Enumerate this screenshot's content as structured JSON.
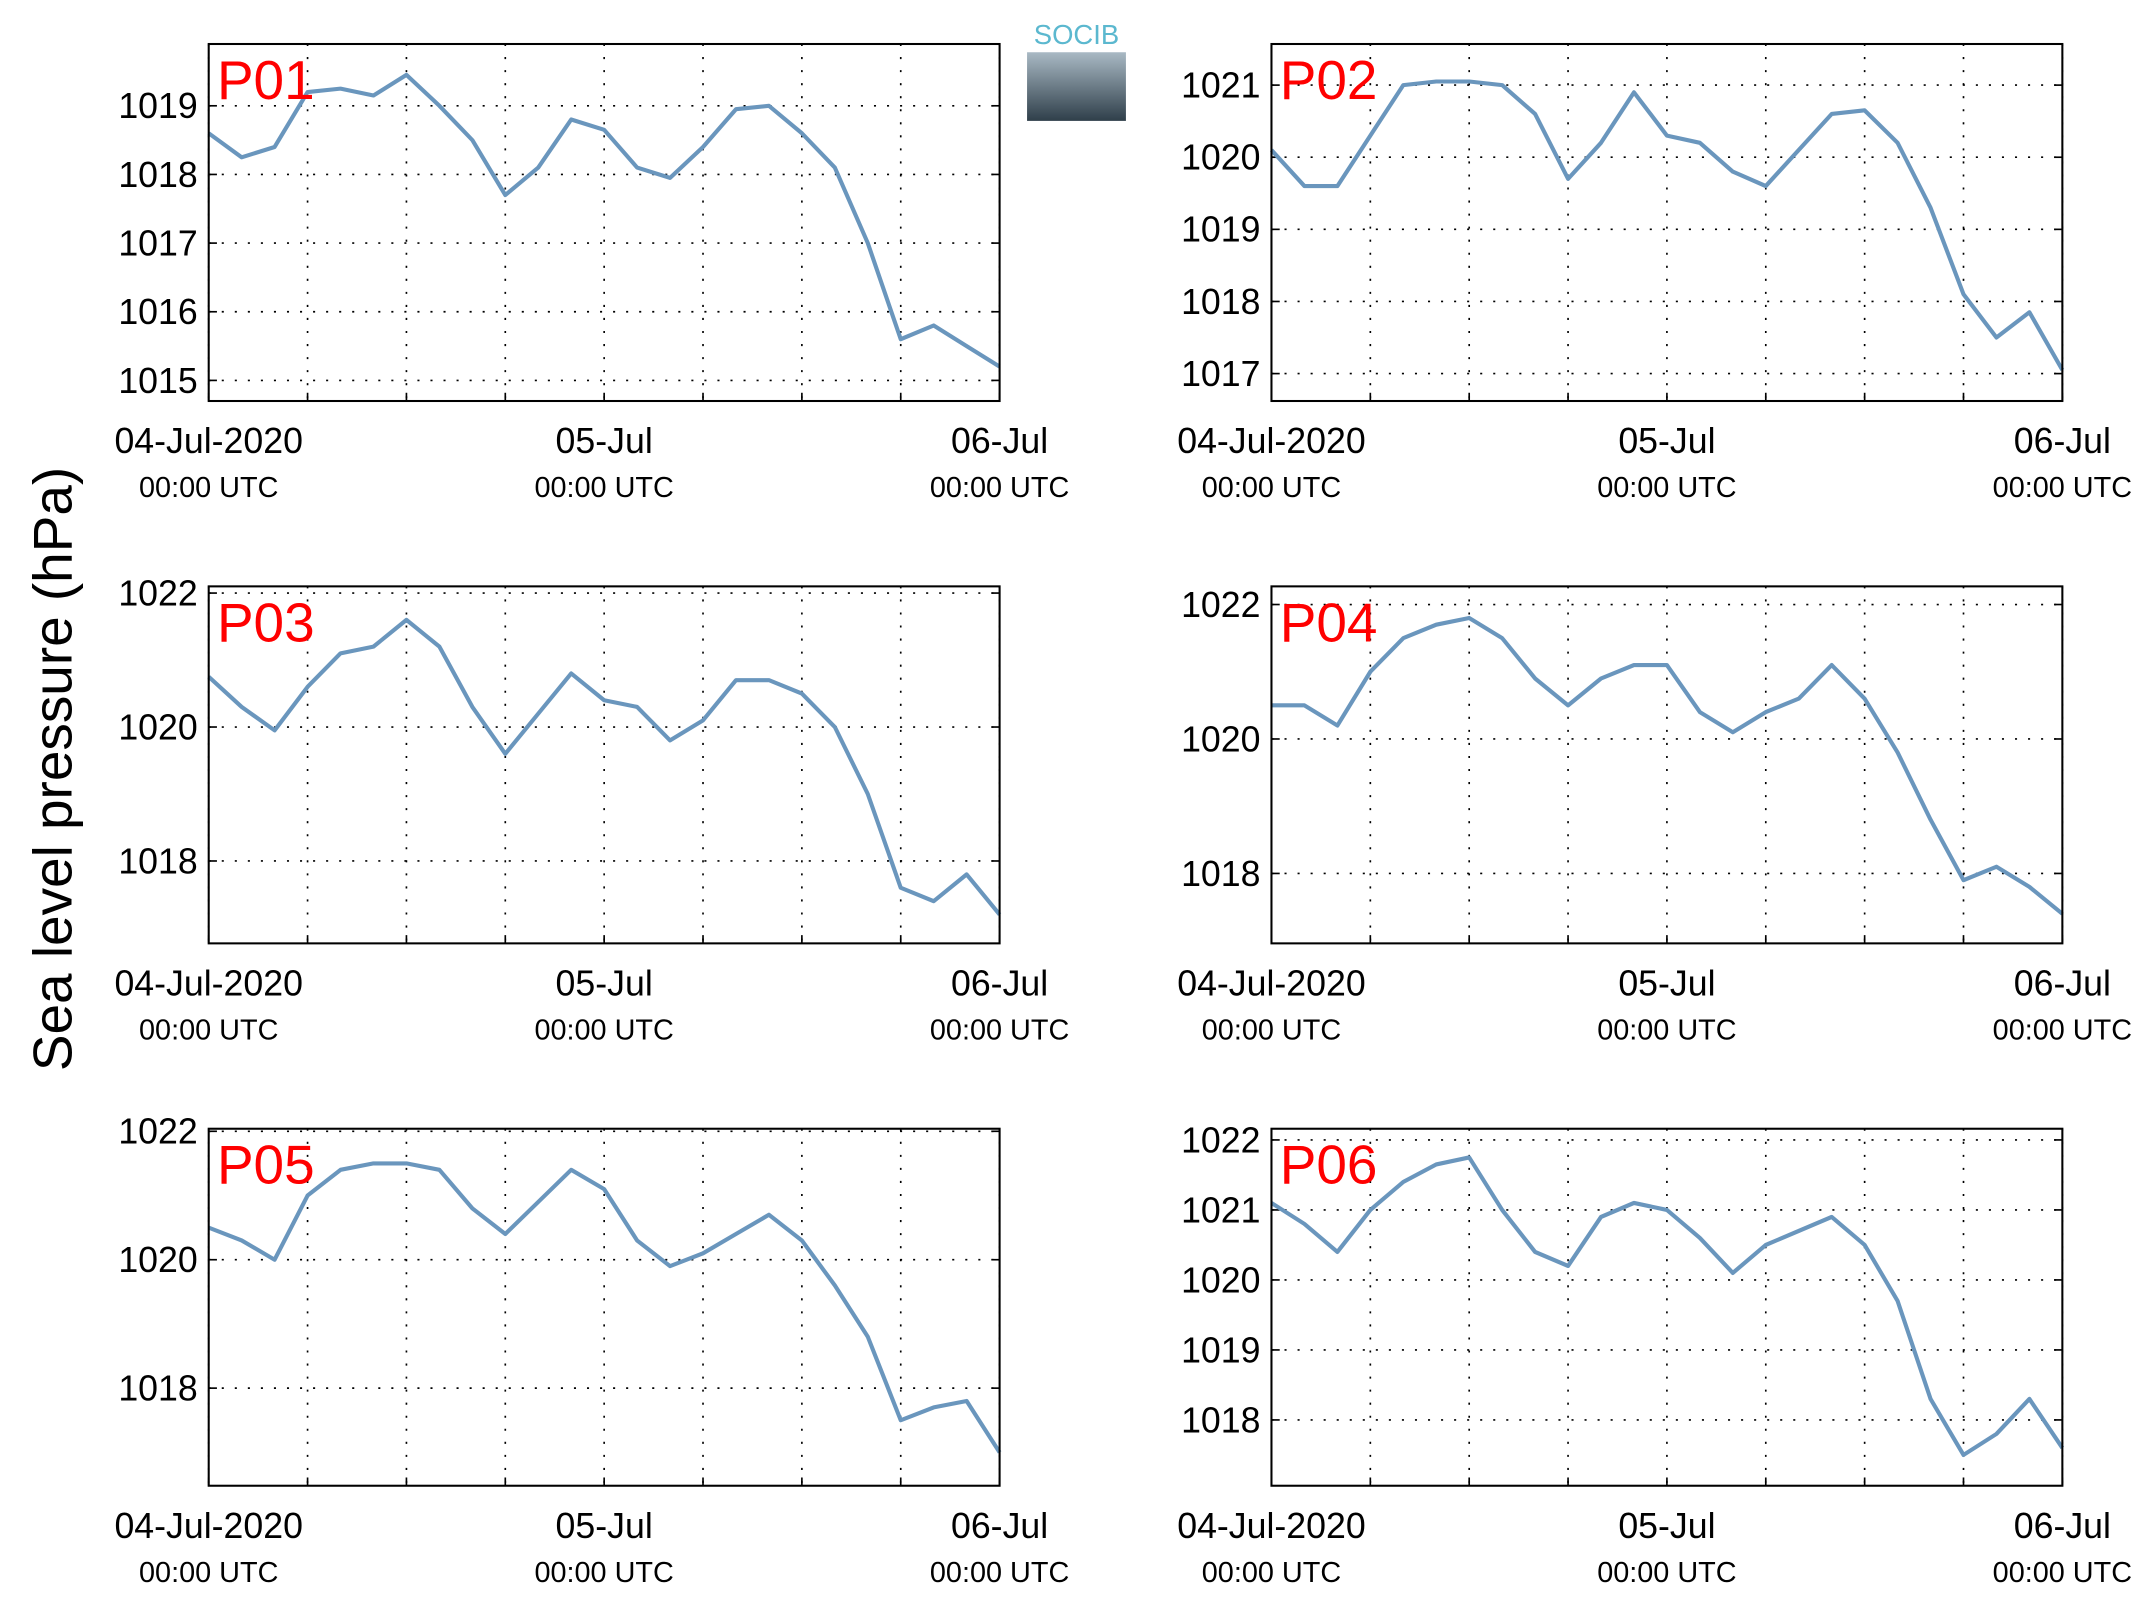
{
  "ylabel": "Sea level pressure (hPa)",
  "logo": "SOCIB",
  "chart_data": [
    {
      "type": "line",
      "title": "P01",
      "color": "#6a96bd",
      "grid": true,
      "x": [
        0,
        2,
        4,
        6,
        8,
        10,
        12,
        14,
        16,
        18,
        20,
        22,
        24,
        26,
        28,
        30,
        32,
        34,
        36,
        38,
        40,
        42,
        44,
        46,
        48
      ],
      "values": [
        1018.6,
        1018.25,
        1018.4,
        1019.2,
        1019.25,
        1019.15,
        1019.45,
        1019.0,
        1018.5,
        1017.7,
        1018.1,
        1018.8,
        1018.65,
        1018.1,
        1017.95,
        1018.4,
        1018.95,
        1019.0,
        1018.6,
        1018.1,
        1017.0,
        1015.6,
        1015.8,
        1015.5,
        1015.2
      ],
      "xlim": [
        0,
        48
      ],
      "ylim": [
        1014.7,
        1019.9
      ],
      "yticks": [
        1015,
        1016,
        1017,
        1018,
        1019
      ],
      "xticks": [
        {
          "value": 0,
          "label": "04-Jul-2020",
          "time": "00:00 UTC"
        },
        {
          "value": 24,
          "label": "05-Jul",
          "time": "00:00 UTC"
        },
        {
          "value": 48,
          "label": "06-Jul",
          "time": "00:00 UTC"
        }
      ],
      "xminorgrid": [
        6,
        12,
        18,
        30,
        36,
        42
      ]
    },
    {
      "type": "line",
      "title": "P02",
      "color": "#6a96bd",
      "grid": true,
      "x": [
        0,
        2,
        4,
        6,
        8,
        10,
        12,
        14,
        16,
        18,
        20,
        22,
        24,
        26,
        28,
        30,
        32,
        34,
        36,
        38,
        40,
        42,
        44,
        46,
        48
      ],
      "values": [
        1020.1,
        1019.6,
        1019.6,
        1020.3,
        1021.0,
        1021.05,
        1021.05,
        1021.0,
        1020.6,
        1019.7,
        1020.2,
        1020.9,
        1020.3,
        1020.2,
        1019.8,
        1019.6,
        1020.1,
        1020.6,
        1020.65,
        1020.2,
        1019.3,
        1018.1,
        1017.5,
        1017.85,
        1017.05
      ],
      "xlim": [
        0,
        48
      ],
      "ylim": [
        1016.62,
        1021.57
      ],
      "yticks": [
        1017,
        1018,
        1019,
        1020,
        1021
      ],
      "xticks": [
        {
          "value": 0,
          "label": "04-Jul-2020",
          "time": "00:00 UTC"
        },
        {
          "value": 24,
          "label": "05-Jul",
          "time": "00:00 UTC"
        },
        {
          "value": 48,
          "label": "06-Jul",
          "time": "00:00 UTC"
        }
      ],
      "xminorgrid": [
        6,
        12,
        18,
        30,
        36,
        42
      ]
    },
    {
      "type": "line",
      "title": "P03",
      "color": "#6a96bd",
      "grid": true,
      "x": [
        0,
        2,
        4,
        6,
        8,
        10,
        12,
        14,
        16,
        18,
        20,
        22,
        24,
        26,
        28,
        30,
        32,
        34,
        36,
        38,
        40,
        42,
        44,
        46,
        48
      ],
      "values": [
        1020.75,
        1020.3,
        1019.95,
        1020.6,
        1021.1,
        1021.2,
        1021.6,
        1021.2,
        1020.3,
        1019.6,
        1020.2,
        1020.8,
        1020.4,
        1020.3,
        1019.8,
        1020.1,
        1020.7,
        1020.7,
        1020.5,
        1020.0,
        1019.0,
        1017.6,
        1017.4,
        1017.8,
        1017.2
      ],
      "xlim": [
        0,
        48
      ],
      "ylim": [
        1016.77,
        1022.1
      ],
      "yticks": [
        1018,
        1020,
        1022
      ],
      "xticks": [
        {
          "value": 0,
          "label": "04-Jul-2020",
          "time": "00:00 UTC"
        },
        {
          "value": 24,
          "label": "05-Jul",
          "time": "00:00 UTC"
        },
        {
          "value": 48,
          "label": "06-Jul",
          "time": "00:00 UTC"
        }
      ],
      "xminorgrid": [
        6,
        12,
        18,
        30,
        36,
        42
      ]
    },
    {
      "type": "line",
      "title": "P04",
      "color": "#6a96bd",
      "grid": true,
      "x": [
        0,
        2,
        4,
        6,
        8,
        10,
        12,
        14,
        16,
        18,
        20,
        22,
        24,
        26,
        28,
        30,
        32,
        34,
        36,
        38,
        40,
        42,
        44,
        46,
        48
      ],
      "values": [
        1020.5,
        1020.5,
        1020.2,
        1021.0,
        1021.5,
        1021.7,
        1021.8,
        1021.5,
        1020.9,
        1020.5,
        1020.9,
        1021.1,
        1021.1,
        1020.4,
        1020.1,
        1020.4,
        1020.6,
        1021.1,
        1020.6,
        1019.8,
        1018.8,
        1017.9,
        1018.1,
        1017.8,
        1017.4
      ],
      "xlim": [
        0,
        48
      ],
      "ylim": [
        1016.96,
        1022.27
      ],
      "yticks": [
        1018,
        1020,
        1022
      ],
      "xticks": [
        {
          "value": 0,
          "label": "04-Jul-2020",
          "time": "00:00 UTC"
        },
        {
          "value": 24,
          "label": "05-Jul",
          "time": "00:00 UTC"
        },
        {
          "value": 48,
          "label": "06-Jul",
          "time": "00:00 UTC"
        }
      ],
      "xminorgrid": [
        6,
        12,
        18,
        30,
        36,
        42
      ]
    },
    {
      "type": "line",
      "title": "P05",
      "color": "#6a96bd",
      "grid": true,
      "x": [
        0,
        2,
        4,
        6,
        8,
        10,
        12,
        14,
        16,
        18,
        20,
        22,
        24,
        26,
        28,
        30,
        32,
        34,
        36,
        38,
        40,
        42,
        44,
        46,
        48
      ],
      "values": [
        1020.5,
        1020.3,
        1020.0,
        1021.0,
        1021.4,
        1021.5,
        1021.5,
        1021.4,
        1020.8,
        1020.4,
        1020.9,
        1021.4,
        1021.1,
        1020.3,
        1019.9,
        1020.1,
        1020.4,
        1020.7,
        1020.3,
        1019.6,
        1018.8,
        1017.5,
        1017.7,
        1017.8,
        1017.0
      ],
      "xlim": [
        0,
        48
      ],
      "ylim": [
        1016.48,
        1022.04
      ],
      "yticks": [
        1018,
        1020,
        1022
      ],
      "xticks": [
        {
          "value": 0,
          "label": "04-Jul-2020",
          "time": "00:00 UTC"
        },
        {
          "value": 24,
          "label": "05-Jul",
          "time": "00:00 UTC"
        },
        {
          "value": 48,
          "label": "06-Jul",
          "time": "00:00 UTC"
        }
      ],
      "xminorgrid": [
        6,
        12,
        18,
        30,
        36,
        42
      ]
    },
    {
      "type": "line",
      "title": "P06",
      "color": "#6a96bd",
      "grid": true,
      "x": [
        0,
        2,
        4,
        6,
        8,
        10,
        12,
        14,
        16,
        18,
        20,
        22,
        24,
        26,
        28,
        30,
        32,
        34,
        36,
        38,
        40,
        42,
        44,
        46,
        48
      ],
      "values": [
        1021.1,
        1020.8,
        1020.4,
        1021.0,
        1021.4,
        1021.65,
        1021.75,
        1021.0,
        1020.4,
        1020.2,
        1020.9,
        1021.1,
        1021.0,
        1020.6,
        1020.1,
        1020.5,
        1020.7,
        1020.9,
        1020.5,
        1019.7,
        1018.3,
        1017.5,
        1017.8,
        1018.3,
        1017.6
      ],
      "xlim": [
        0,
        48
      ],
      "ylim": [
        1017.06,
        1022.16
      ],
      "yticks": [
        1018,
        1019,
        1020,
        1021,
        1022
      ],
      "xticks": [
        {
          "value": 0,
          "label": "04-Jul-2020",
          "time": "00:00 UTC"
        },
        {
          "value": 24,
          "label": "05-Jul",
          "time": "00:00 UTC"
        },
        {
          "value": 48,
          "label": "06-Jul",
          "time": "00:00 UTC"
        }
      ],
      "xminorgrid": [
        6,
        12,
        18,
        30,
        36,
        42
      ]
    }
  ]
}
